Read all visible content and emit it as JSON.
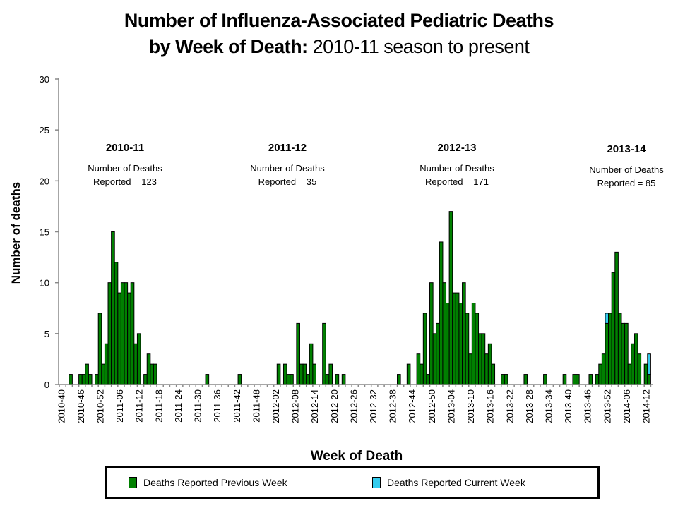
{
  "title": {
    "line1": "Number of Influenza-Associated Pediatric Deaths",
    "line2_bold": "by Week of Death:",
    "line2_regular": " 2010-11 season to present"
  },
  "colors": {
    "previous_week": "#008000",
    "current_week": "#33CCEE",
    "bar_outline": "#000000",
    "axis": "#888888"
  },
  "legend": {
    "items": [
      {
        "label": "Deaths Reported Previous Week",
        "color": "#008000"
      },
      {
        "label": "Deaths Reported Current Week",
        "color": "#33CCEE"
      }
    ]
  },
  "chart_data": {
    "type": "bar",
    "stacked": true,
    "title": "Number of Influenza-Associated Pediatric Deaths by Week of Death: 2010-11 season to present",
    "xlabel": "Week of Death",
    "ylabel": "Number of deaths",
    "ylim": [
      0,
      30
    ],
    "yticks": [
      0,
      5,
      10,
      15,
      20,
      25,
      30
    ],
    "grid": false,
    "legend_position": "bottom",
    "week_range": {
      "start": "2010-40",
      "end": "2014-14"
    },
    "xtick_labels": [
      "2010-40",
      "2010-46",
      "2010-52",
      "2011-06",
      "2011-12",
      "2011-18",
      "2011-24",
      "2011-30",
      "2011-36",
      "2011-42",
      "2011-48",
      "2012-02",
      "2012-08",
      "2012-14",
      "2012-20",
      "2012-26",
      "2012-32",
      "2012-38",
      "2012-44",
      "2012-50",
      "2013-04",
      "2013-10",
      "2013-16",
      "2013-22",
      "2013-28",
      "2013-34",
      "2013-40",
      "2013-46",
      "2013-52",
      "2014-06",
      "2014-12"
    ],
    "series": [
      {
        "name": "Deaths Reported Previous Week",
        "values": {
          "2010-43": 1,
          "2010-46": 1,
          "2010-47": 1,
          "2010-48": 2,
          "2010-49": 1,
          "2010-51": 1,
          "2010-52": 7,
          "2011-01": 2,
          "2011-02": 4,
          "2011-03": 10,
          "2011-04": 15,
          "2011-05": 12,
          "2011-06": 9,
          "2011-07": 10,
          "2011-08": 10,
          "2011-09": 9,
          "2011-10": 10,
          "2011-11": 4,
          "2011-12": 5,
          "2011-14": 1,
          "2011-15": 3,
          "2011-16": 2,
          "2011-17": 2,
          "2011-33": 1,
          "2011-43": 1,
          "2012-03": 2,
          "2012-05": 2,
          "2012-06": 1,
          "2012-07": 1,
          "2012-09": 6,
          "2012-10": 2,
          "2012-11": 2,
          "2012-12": 1,
          "2012-13": 4,
          "2012-14": 2,
          "2012-17": 6,
          "2012-18": 1,
          "2012-19": 2,
          "2012-21": 1,
          "2012-23": 1,
          "2012-40": 1,
          "2012-43": 2,
          "2012-46": 3,
          "2012-47": 2,
          "2012-48": 7,
          "2012-49": 1,
          "2012-50": 10,
          "2012-51": 5,
          "2012-52": 6,
          "2013-01": 14,
          "2013-02": 10,
          "2013-03": 8,
          "2013-04": 17,
          "2013-05": 9,
          "2013-06": 9,
          "2013-07": 8,
          "2013-08": 10,
          "2013-09": 7,
          "2013-10": 3,
          "2013-11": 8,
          "2013-12": 7,
          "2013-13": 5,
          "2013-14": 5,
          "2013-15": 3,
          "2013-16": 4,
          "2013-17": 2,
          "2013-20": 1,
          "2013-21": 1,
          "2013-27": 1,
          "2013-33": 1,
          "2013-39": 1,
          "2013-42": 1,
          "2013-43": 1,
          "2013-47": 1,
          "2013-49": 1,
          "2013-50": 2,
          "2013-51": 3,
          "2013-52": 6,
          "2014-01": 7,
          "2014-02": 11,
          "2014-03": 13,
          "2014-04": 7,
          "2014-05": 6,
          "2014-06": 6,
          "2014-07": 2,
          "2014-08": 4,
          "2014-09": 5,
          "2014-10": 3,
          "2014-12": 2,
          "2014-13": 1
        }
      },
      {
        "name": "Deaths Reported Current Week",
        "values": {
          "2013-52": 1,
          "2014-13": 2
        }
      }
    ],
    "annotations": [
      {
        "season": "2010-11",
        "line1": "Number of Deaths",
        "line2": "Reported = 123"
      },
      {
        "season": "2011-12",
        "line1": "Number of Deaths",
        "line2": "Reported = 35"
      },
      {
        "season": "2012-13",
        "line1": "Number of Deaths",
        "line2": "Reported = 171"
      },
      {
        "season": "2013-14",
        "line1": "Number of Deaths",
        "line2": "Reported = 85"
      }
    ]
  }
}
